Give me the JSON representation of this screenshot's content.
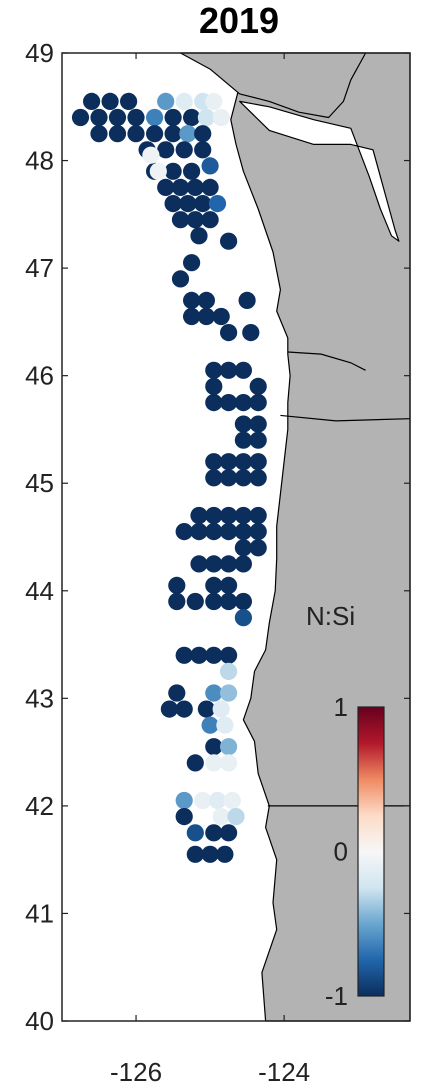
{
  "title": "2019",
  "colors": {
    "land": "#b3b3b3",
    "ocean": "#ffffff",
    "coastline": "#000000",
    "frame": "#222222",
    "colorbar_stops": [
      "#0b2e5c",
      "#2166ac",
      "#6aa6cf",
      "#d1e5f0",
      "#f7f7f7",
      "#fddbc7",
      "#ef8a62",
      "#b2182b",
      "#67001f"
    ]
  },
  "map": {
    "lon_range": [
      -127.0,
      -122.3
    ],
    "lat_range": [
      40.0,
      49.0
    ],
    "x_ticks": [
      {
        "value": -126,
        "label": "-126"
      },
      {
        "value": -124,
        "label": "-124"
      }
    ],
    "y_ticks": [
      {
        "value": 49,
        "label": "49"
      },
      {
        "value": 48,
        "label": "48"
      },
      {
        "value": 47,
        "label": "47"
      },
      {
        "value": 46,
        "label": "46"
      },
      {
        "value": 45,
        "label": "45"
      },
      {
        "value": 44,
        "label": "44"
      },
      {
        "value": 43,
        "label": "43"
      },
      {
        "value": 42,
        "label": "42"
      },
      {
        "value": 41,
        "label": "41"
      },
      {
        "value": 40,
        "label": "40"
      }
    ]
  },
  "colorbar": {
    "label": "N:Si",
    "range": [
      -1,
      1
    ],
    "ticks": [
      {
        "value": 1,
        "label": "1"
      },
      {
        "value": 0,
        "label": "0"
      },
      {
        "value": -1,
        "label": "-1"
      }
    ]
  },
  "chart_data": {
    "type": "scatter",
    "title": "2019",
    "variable": "N:Si",
    "xlim": [
      -127.0,
      -122.3
    ],
    "ylim": [
      40.0,
      49.0
    ],
    "points": [
      {
        "lon": -126.6,
        "lat": 48.55,
        "v": -1
      },
      {
        "lon": -126.35,
        "lat": 48.55,
        "v": -1
      },
      {
        "lon": -126.1,
        "lat": 48.55,
        "v": -1
      },
      {
        "lon": -125.6,
        "lat": 48.55,
        "v": -0.55
      },
      {
        "lon": -125.35,
        "lat": 48.55,
        "v": -0.15
      },
      {
        "lon": -125.1,
        "lat": 48.55,
        "v": -0.25
      },
      {
        "lon": -124.95,
        "lat": 48.55,
        "v": -0.1
      },
      {
        "lon": -126.75,
        "lat": 48.4,
        "v": -1
      },
      {
        "lon": -126.5,
        "lat": 48.4,
        "v": -1
      },
      {
        "lon": -126.25,
        "lat": 48.4,
        "v": -1
      },
      {
        "lon": -126.0,
        "lat": 48.4,
        "v": -1
      },
      {
        "lon": -125.75,
        "lat": 48.4,
        "v": -0.65
      },
      {
        "lon": -125.5,
        "lat": 48.4,
        "v": -1
      },
      {
        "lon": -125.25,
        "lat": 48.4,
        "v": -1
      },
      {
        "lon": -125.05,
        "lat": 48.4,
        "v": -0.25
      },
      {
        "lon": -124.85,
        "lat": 48.4,
        "v": -0.1
      },
      {
        "lon": -126.5,
        "lat": 48.25,
        "v": -1
      },
      {
        "lon": -126.25,
        "lat": 48.25,
        "v": -1
      },
      {
        "lon": -126.0,
        "lat": 48.25,
        "v": -1
      },
      {
        "lon": -125.75,
        "lat": 48.25,
        "v": -1
      },
      {
        "lon": -125.5,
        "lat": 48.25,
        "v": -1
      },
      {
        "lon": -125.3,
        "lat": 48.25,
        "v": -0.55
      },
      {
        "lon": -125.1,
        "lat": 48.25,
        "v": -1
      },
      {
        "lon": -125.85,
        "lat": 48.1,
        "v": -1
      },
      {
        "lon": -125.6,
        "lat": 48.1,
        "v": -1
      },
      {
        "lon": -125.35,
        "lat": 48.1,
        "v": -1
      },
      {
        "lon": -125.1,
        "lat": 48.1,
        "v": -1
      },
      {
        "lon": -125.75,
        "lat": 47.9,
        "v": -1
      },
      {
        "lon": -125.5,
        "lat": 47.9,
        "v": -1
      },
      {
        "lon": -125.25,
        "lat": 47.9,
        "v": -1
      },
      {
        "lon": -125.0,
        "lat": 47.95,
        "v": -0.8
      },
      {
        "lon": -125.6,
        "lat": 47.75,
        "v": -1
      },
      {
        "lon": -125.4,
        "lat": 47.75,
        "v": -1
      },
      {
        "lon": -125.2,
        "lat": 47.75,
        "v": -1
      },
      {
        "lon": -125.0,
        "lat": 47.75,
        "v": -1
      },
      {
        "lon": -125.5,
        "lat": 47.6,
        "v": -1
      },
      {
        "lon": -125.3,
        "lat": 47.6,
        "v": -1
      },
      {
        "lon": -125.1,
        "lat": 47.6,
        "v": -1
      },
      {
        "lon": -124.9,
        "lat": 47.6,
        "v": -0.75
      },
      {
        "lon": -125.4,
        "lat": 47.45,
        "v": -1
      },
      {
        "lon": -125.2,
        "lat": 47.45,
        "v": -1
      },
      {
        "lon": -125.0,
        "lat": 47.45,
        "v": -1
      },
      {
        "lon": -125.15,
        "lat": 47.3,
        "v": -1
      },
      {
        "lon": -124.75,
        "lat": 47.25,
        "v": -1
      },
      {
        "lon": -125.25,
        "lat": 47.05,
        "v": -1
      },
      {
        "lon": -125.4,
        "lat": 46.9,
        "v": -1
      },
      {
        "lon": -125.25,
        "lat": 46.7,
        "v": -1
      },
      {
        "lon": -125.05,
        "lat": 46.7,
        "v": -1
      },
      {
        "lon": -124.5,
        "lat": 46.7,
        "v": -1
      },
      {
        "lon": -125.25,
        "lat": 46.55,
        "v": -1
      },
      {
        "lon": -125.05,
        "lat": 46.55,
        "v": -1
      },
      {
        "lon": -124.85,
        "lat": 46.55,
        "v": -1
      },
      {
        "lon": -124.75,
        "lat": 46.4,
        "v": -1
      },
      {
        "lon": -124.45,
        "lat": 46.4,
        "v": -1
      },
      {
        "lon": -124.95,
        "lat": 46.05,
        "v": -1
      },
      {
        "lon": -124.75,
        "lat": 46.05,
        "v": -1
      },
      {
        "lon": -124.55,
        "lat": 46.05,
        "v": -1
      },
      {
        "lon": -124.95,
        "lat": 45.9,
        "v": -1
      },
      {
        "lon": -124.35,
        "lat": 45.9,
        "v": -1
      },
      {
        "lon": -124.95,
        "lat": 45.75,
        "v": -1
      },
      {
        "lon": -124.75,
        "lat": 45.75,
        "v": -1
      },
      {
        "lon": -124.55,
        "lat": 45.75,
        "v": -1
      },
      {
        "lon": -124.35,
        "lat": 45.75,
        "v": -1
      },
      {
        "lon": -124.55,
        "lat": 45.55,
        "v": -1
      },
      {
        "lon": -124.35,
        "lat": 45.55,
        "v": -1
      },
      {
        "lon": -124.55,
        "lat": 45.4,
        "v": -1
      },
      {
        "lon": -124.35,
        "lat": 45.4,
        "v": -1
      },
      {
        "lon": -124.95,
        "lat": 45.2,
        "v": -1
      },
      {
        "lon": -124.75,
        "lat": 45.2,
        "v": -1
      },
      {
        "lon": -124.55,
        "lat": 45.2,
        "v": -1
      },
      {
        "lon": -124.35,
        "lat": 45.2,
        "v": -1
      },
      {
        "lon": -124.95,
        "lat": 45.05,
        "v": -1
      },
      {
        "lon": -124.75,
        "lat": 45.05,
        "v": -1
      },
      {
        "lon": -124.55,
        "lat": 45.05,
        "v": -1
      },
      {
        "lon": -124.35,
        "lat": 45.05,
        "v": -1
      },
      {
        "lon": -125.15,
        "lat": 44.7,
        "v": -1
      },
      {
        "lon": -124.95,
        "lat": 44.7,
        "v": -1
      },
      {
        "lon": -124.75,
        "lat": 44.7,
        "v": -1
      },
      {
        "lon": -124.55,
        "lat": 44.7,
        "v": -1
      },
      {
        "lon": -124.35,
        "lat": 44.7,
        "v": -1
      },
      {
        "lon": -125.35,
        "lat": 44.55,
        "v": -1
      },
      {
        "lon": -125.15,
        "lat": 44.55,
        "v": -1
      },
      {
        "lon": -124.95,
        "lat": 44.55,
        "v": -1
      },
      {
        "lon": -124.75,
        "lat": 44.55,
        "v": -1
      },
      {
        "lon": -124.55,
        "lat": 44.55,
        "v": -1
      },
      {
        "lon": -124.35,
        "lat": 44.55,
        "v": -1
      },
      {
        "lon": -124.55,
        "lat": 44.4,
        "v": -1
      },
      {
        "lon": -124.35,
        "lat": 44.4,
        "v": -1
      },
      {
        "lon": -125.15,
        "lat": 44.25,
        "v": -1
      },
      {
        "lon": -124.95,
        "lat": 44.25,
        "v": -1
      },
      {
        "lon": -124.75,
        "lat": 44.25,
        "v": -1
      },
      {
        "lon": -124.55,
        "lat": 44.25,
        "v": -1
      },
      {
        "lon": -125.45,
        "lat": 44.05,
        "v": -1
      },
      {
        "lon": -124.95,
        "lat": 44.05,
        "v": -1
      },
      {
        "lon": -124.75,
        "lat": 44.05,
        "v": -1
      },
      {
        "lon": -125.45,
        "lat": 43.9,
        "v": -1
      },
      {
        "lon": -125.2,
        "lat": 43.9,
        "v": -1
      },
      {
        "lon": -124.95,
        "lat": 43.9,
        "v": -1
      },
      {
        "lon": -124.75,
        "lat": 43.9,
        "v": -1
      },
      {
        "lon": -124.55,
        "lat": 43.9,
        "v": -1
      },
      {
        "lon": -124.55,
        "lat": 43.75,
        "v": -0.85
      },
      {
        "lon": -125.35,
        "lat": 43.4,
        "v": -1
      },
      {
        "lon": -125.15,
        "lat": 43.4,
        "v": -1
      },
      {
        "lon": -124.95,
        "lat": 43.4,
        "v": -1
      },
      {
        "lon": -124.75,
        "lat": 43.4,
        "v": -1
      },
      {
        "lon": -124.75,
        "lat": 43.25,
        "v": -0.3
      },
      {
        "lon": -125.45,
        "lat": 43.05,
        "v": -1
      },
      {
        "lon": -124.95,
        "lat": 43.05,
        "v": -0.6
      },
      {
        "lon": -124.75,
        "lat": 43.05,
        "v": -0.4
      },
      {
        "lon": -125.55,
        "lat": 42.9,
        "v": -1
      },
      {
        "lon": -125.35,
        "lat": 42.9,
        "v": -1
      },
      {
        "lon": -125.05,
        "lat": 42.9,
        "v": -1
      },
      {
        "lon": -124.85,
        "lat": 42.9,
        "v": -0.15
      },
      {
        "lon": -125.0,
        "lat": 42.75,
        "v": -0.65
      },
      {
        "lon": -124.8,
        "lat": 42.75,
        "v": -0.15
      },
      {
        "lon": -124.95,
        "lat": 42.55,
        "v": -1
      },
      {
        "lon": -124.75,
        "lat": 42.55,
        "v": -0.45
      },
      {
        "lon": -125.2,
        "lat": 42.4,
        "v": -1
      },
      {
        "lon": -124.95,
        "lat": 42.4,
        "v": -0.1
      },
      {
        "lon": -124.75,
        "lat": 42.4,
        "v": -0.1
      },
      {
        "lon": -125.35,
        "lat": 42.05,
        "v": -0.55
      },
      {
        "lon": -125.1,
        "lat": 42.05,
        "v": -0.1
      },
      {
        "lon": -124.9,
        "lat": 42.05,
        "v": -0.15
      },
      {
        "lon": -124.7,
        "lat": 42.05,
        "v": -0.1
      },
      {
        "lon": -125.35,
        "lat": 41.9,
        "v": -1
      },
      {
        "lon": -124.85,
        "lat": 41.9,
        "v": -0.1
      },
      {
        "lon": -124.65,
        "lat": 41.9,
        "v": -0.3
      },
      {
        "lon": -125.2,
        "lat": 41.75,
        "v": -0.85
      },
      {
        "lon": -124.95,
        "lat": 41.75,
        "v": -1
      },
      {
        "lon": -124.75,
        "lat": 41.75,
        "v": -1
      },
      {
        "lon": -125.2,
        "lat": 41.55,
        "v": -1
      },
      {
        "lon": -125.0,
        "lat": 41.55,
        "v": -1
      },
      {
        "lon": -124.8,
        "lat": 41.55,
        "v": -1
      },
      {
        "lon": -125.8,
        "lat": 48.05,
        "v": -0.05
      },
      {
        "lon": -125.7,
        "lat": 47.9,
        "v": -0.05
      }
    ]
  }
}
